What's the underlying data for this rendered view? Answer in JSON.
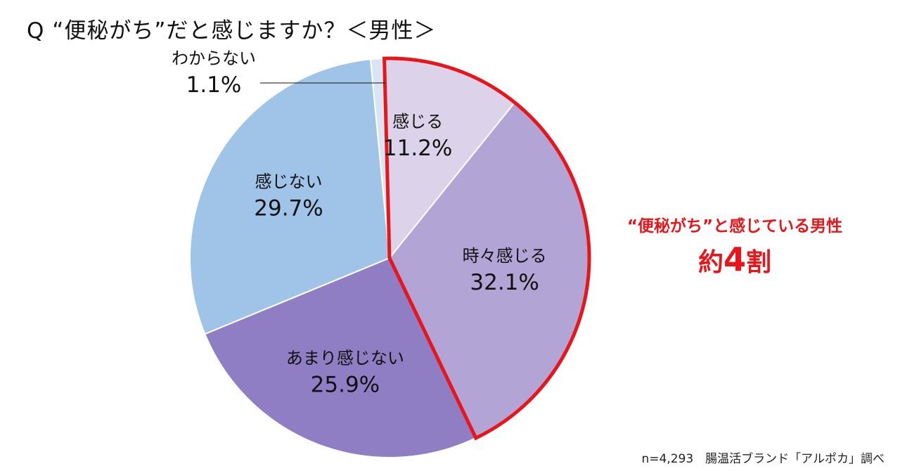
{
  "title": "Q “便秘がち”だと感じますか？＜男性＞",
  "chart_data": {
    "type": "pie",
    "slices": [
      {
        "label": "感じる",
        "value": 11.2,
        "value_text": "11.2%",
        "color": "#dcd3ea"
      },
      {
        "label": "時々感じる",
        "value": 32.1,
        "value_text": "32.1%",
        "color": "#b2a5d5"
      },
      {
        "label": "あまり感じない",
        "value": 25.9,
        "value_text": "25.9%",
        "color": "#8f7ec3"
      },
      {
        "label": "感じない",
        "value": 29.7,
        "value_text": "29.7%",
        "color": "#9fc4e8"
      },
      {
        "label": "わからない",
        "value": 1.1,
        "value_text": "1.1%",
        "color": "#d7e5f5"
      }
    ],
    "highlight": {
      "slices": [
        "感じる",
        "時々感じる"
      ],
      "color": "#e8161b"
    }
  },
  "callout": {
    "line1": "“便秘がち”と感じている男性",
    "prefix": "約",
    "number": "4",
    "suffix": "割"
  },
  "source": "n=4,293　腸温活ブランド「アルポカ」調べ"
}
